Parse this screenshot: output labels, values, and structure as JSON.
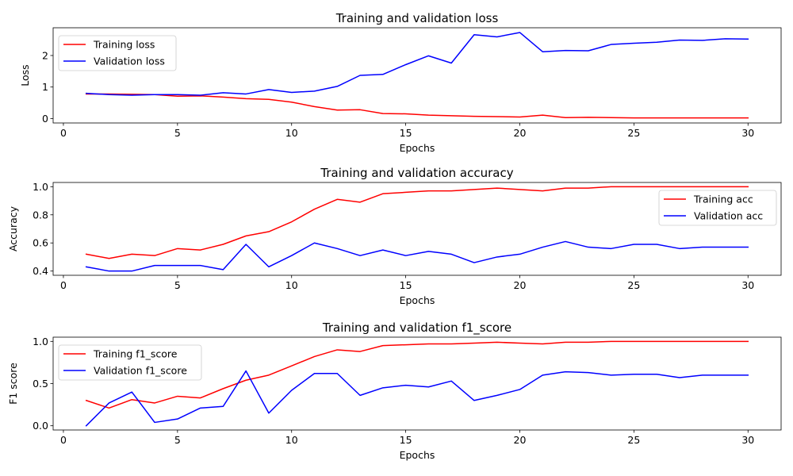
{
  "chart_data": [
    {
      "type": "line",
      "title": "Training and validation loss",
      "xlabel": "Epochs",
      "ylabel": "Loss",
      "xlim": [
        -0.45,
        31.45
      ],
      "ylim": [
        -0.14,
        2.88
      ],
      "xticks": [
        0,
        5,
        10,
        15,
        20,
        25,
        30
      ],
      "yticks": [
        0,
        1,
        2
      ],
      "grid": false,
      "legend": "upper-left",
      "x": [
        1,
        2,
        3,
        4,
        5,
        6,
        7,
        8,
        9,
        10,
        11,
        12,
        13,
        14,
        15,
        16,
        17,
        18,
        19,
        20,
        21,
        22,
        23,
        24,
        25,
        26,
        27,
        28,
        29,
        30
      ],
      "series": [
        {
          "name": "Training loss",
          "color": "#ff0000",
          "values": [
            0.78,
            0.78,
            0.77,
            0.76,
            0.71,
            0.72,
            0.68,
            0.63,
            0.61,
            0.52,
            0.38,
            0.27,
            0.28,
            0.16,
            0.15,
            0.11,
            0.09,
            0.07,
            0.06,
            0.05,
            0.11,
            0.03,
            0.04,
            0.03,
            0.02,
            0.02,
            0.02,
            0.02,
            0.02,
            0.02
          ]
        },
        {
          "name": "Validation loss",
          "color": "#0000ff",
          "values": [
            0.8,
            0.76,
            0.74,
            0.76,
            0.76,
            0.74,
            0.82,
            0.78,
            0.92,
            0.83,
            0.87,
            1.02,
            1.37,
            1.4,
            1.71,
            1.99,
            1.76,
            2.66,
            2.59,
            2.73,
            2.12,
            2.16,
            2.15,
            2.35,
            2.39,
            2.42,
            2.49,
            2.48,
            2.53,
            2.52
          ]
        }
      ]
    },
    {
      "type": "line",
      "title": "Training and validation accuracy",
      "xlabel": "Epochs",
      "ylabel": "Accuracy",
      "xlim": [
        -0.45,
        31.45
      ],
      "ylim": [
        0.37,
        1.03
      ],
      "xticks": [
        0,
        5,
        10,
        15,
        20,
        25,
        30
      ],
      "yticks": [
        0.4,
        0.6,
        0.8,
        1.0
      ],
      "grid": false,
      "legend": "right",
      "x": [
        1,
        2,
        3,
        4,
        5,
        6,
        7,
        8,
        9,
        10,
        11,
        12,
        13,
        14,
        15,
        16,
        17,
        18,
        19,
        20,
        21,
        22,
        23,
        24,
        25,
        26,
        27,
        28,
        29,
        30
      ],
      "series": [
        {
          "name": "Training acc",
          "color": "#ff0000",
          "values": [
            0.52,
            0.49,
            0.52,
            0.51,
            0.56,
            0.55,
            0.59,
            0.65,
            0.68,
            0.75,
            0.84,
            0.91,
            0.89,
            0.95,
            0.96,
            0.97,
            0.97,
            0.98,
            0.99,
            0.98,
            0.97,
            0.99,
            0.99,
            1.0,
            1.0,
            1.0,
            1.0,
            1.0,
            1.0,
            1.0
          ]
        },
        {
          "name": "Validation acc",
          "color": "#0000ff",
          "values": [
            0.43,
            0.4,
            0.4,
            0.44,
            0.44,
            0.44,
            0.41,
            0.59,
            0.43,
            0.51,
            0.6,
            0.56,
            0.51,
            0.55,
            0.51,
            0.54,
            0.52,
            0.46,
            0.5,
            0.52,
            0.57,
            0.61,
            0.57,
            0.56,
            0.59,
            0.59,
            0.56,
            0.57,
            0.57,
            0.57
          ]
        }
      ]
    },
    {
      "type": "line",
      "title": "Training and validation f1_score",
      "xlabel": "Epochs",
      "ylabel": "F1 score",
      "xlim": [
        -0.45,
        31.45
      ],
      "ylim": [
        -0.05,
        1.05
      ],
      "xticks": [
        0,
        5,
        10,
        15,
        20,
        25,
        30
      ],
      "yticks": [
        0.0,
        0.5,
        1.0
      ],
      "grid": false,
      "legend": "upper-left",
      "x": [
        1,
        2,
        3,
        4,
        5,
        6,
        7,
        8,
        9,
        10,
        11,
        12,
        13,
        14,
        15,
        16,
        17,
        18,
        19,
        20,
        21,
        22,
        23,
        24,
        25,
        26,
        27,
        28,
        29,
        30
      ],
      "series": [
        {
          "name": "Training f1_score",
          "color": "#ff0000",
          "values": [
            0.3,
            0.21,
            0.31,
            0.27,
            0.35,
            0.33,
            0.44,
            0.54,
            0.6,
            0.71,
            0.82,
            0.9,
            0.88,
            0.95,
            0.96,
            0.97,
            0.97,
            0.98,
            0.99,
            0.98,
            0.97,
            0.99,
            0.99,
            1.0,
            1.0,
            1.0,
            1.0,
            1.0,
            1.0,
            1.0
          ]
        },
        {
          "name": "Validation f1_score",
          "color": "#0000ff",
          "values": [
            0.0,
            0.27,
            0.4,
            0.04,
            0.08,
            0.21,
            0.23,
            0.65,
            0.15,
            0.42,
            0.62,
            0.62,
            0.36,
            0.45,
            0.48,
            0.46,
            0.53,
            0.3,
            0.36,
            0.43,
            0.6,
            0.64,
            0.63,
            0.6,
            0.61,
            0.61,
            0.57,
            0.6,
            0.6,
            0.6
          ]
        }
      ]
    }
  ]
}
